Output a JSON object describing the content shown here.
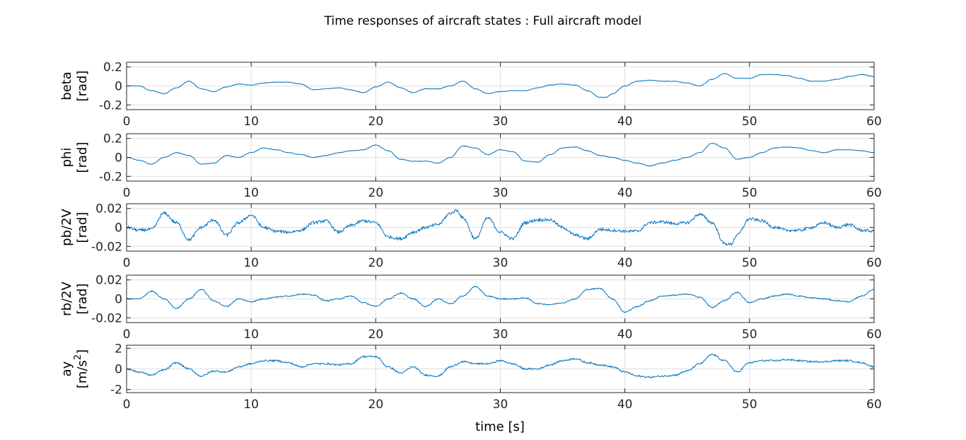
{
  "figure": {
    "title": "Time responses of aircraft states : Full aircraft model",
    "xlabel": "time [s]"
  },
  "chart_data": [
    {
      "type": "line",
      "ylabel_lines": [
        "beta",
        "[rad]"
      ],
      "xlim": [
        0,
        60
      ],
      "ylim": [
        -0.25,
        0.25
      ],
      "yticks": [
        -0.2,
        0,
        0.2
      ],
      "ytick_labels": [
        "-0.2",
        "0",
        "0.2"
      ],
      "xticks": [
        0,
        10,
        20,
        30,
        40,
        50,
        60
      ],
      "grid": true,
      "line_color": "#0072BD",
      "noise": 0.003,
      "x": [
        0,
        1,
        2,
        3,
        4,
        5,
        6,
        7,
        8,
        9,
        10,
        11,
        12,
        13,
        14,
        15,
        16,
        17,
        18,
        19,
        20,
        21,
        22,
        23,
        24,
        25,
        26,
        27,
        28,
        29,
        30,
        31,
        32,
        33,
        34,
        35,
        36,
        37,
        38,
        38.5,
        39,
        40,
        41,
        42,
        43,
        44,
        45,
        46,
        47,
        48,
        49,
        50,
        51,
        52,
        53,
        54,
        55,
        56,
        57,
        58,
        59,
        60
      ],
      "values": [
        0.0,
        0.0,
        -0.05,
        -0.08,
        -0.02,
        0.05,
        -0.03,
        -0.06,
        -0.01,
        0.02,
        0.01,
        0.03,
        0.04,
        0.04,
        0.02,
        -0.04,
        -0.03,
        -0.02,
        -0.04,
        -0.07,
        -0.01,
        0.04,
        -0.02,
        -0.07,
        -0.03,
        -0.03,
        0.0,
        0.05,
        -0.03,
        -0.08,
        -0.06,
        -0.05,
        -0.05,
        -0.02,
        0.01,
        0.02,
        0.01,
        -0.05,
        -0.12,
        -0.12,
        -0.08,
        0.0,
        0.05,
        0.06,
        0.05,
        0.05,
        0.03,
        0.0,
        0.07,
        0.13,
        0.08,
        0.08,
        0.12,
        0.12,
        0.11,
        0.08,
        0.05,
        0.05,
        0.07,
        0.1,
        0.12,
        0.1
      ]
    },
    {
      "type": "line",
      "ylabel_lines": [
        "phi",
        "[rad]"
      ],
      "xlim": [
        0,
        60
      ],
      "ylim": [
        -0.25,
        0.25
      ],
      "yticks": [
        -0.2,
        0,
        0.2
      ],
      "ytick_labels": [
        "-0.2",
        "0",
        "0.2"
      ],
      "xticks": [
        0,
        10,
        20,
        30,
        40,
        50,
        60
      ],
      "grid": true,
      "line_color": "#0072BD",
      "noise": 0.003,
      "x": [
        0,
        1,
        2,
        3,
        4,
        5,
        6,
        7,
        8,
        9,
        10,
        11,
        12,
        13,
        14,
        15,
        16,
        17,
        18,
        19,
        20,
        21,
        22,
        23,
        24,
        25,
        26,
        27,
        28,
        29,
        30,
        31,
        32,
        33,
        34,
        35,
        36,
        37,
        38,
        39,
        40,
        41,
        42,
        43,
        44,
        45,
        46,
        47,
        48,
        49,
        50,
        51,
        52,
        53,
        54,
        55,
        56,
        57,
        58,
        59,
        60
      ],
      "values": [
        0.0,
        -0.03,
        -0.07,
        0.0,
        0.05,
        0.02,
        -0.07,
        -0.06,
        0.02,
        0.0,
        0.05,
        0.1,
        0.08,
        0.05,
        0.03,
        0.0,
        0.02,
        0.05,
        0.07,
        0.08,
        0.13,
        0.07,
        -0.02,
        -0.04,
        -0.04,
        -0.06,
        0.0,
        0.12,
        0.1,
        0.03,
        0.08,
        0.06,
        -0.04,
        -0.05,
        0.03,
        0.1,
        0.11,
        0.07,
        0.02,
        0.0,
        -0.03,
        -0.06,
        -0.09,
        -0.06,
        -0.03,
        0.0,
        0.05,
        0.15,
        0.1,
        -0.02,
        0.0,
        0.05,
        0.1,
        0.11,
        0.1,
        0.07,
        0.05,
        0.08,
        0.08,
        0.07,
        0.05
      ]
    },
    {
      "type": "line",
      "ylabel_lines": [
        "pb/2V",
        "[rad]"
      ],
      "xlim": [
        0,
        60
      ],
      "ylim": [
        -0.025,
        0.025
      ],
      "yticks": [
        -0.02,
        0,
        0.02
      ],
      "ytick_labels": [
        "-0.02",
        "0",
        "0.02"
      ],
      "xticks": [
        0,
        10,
        20,
        30,
        40,
        50,
        60
      ],
      "grid": true,
      "line_color": "#0072BD",
      "noise": 0.0015,
      "x": [
        0,
        1,
        2,
        3,
        4,
        5,
        6,
        7,
        8,
        9,
        10,
        11,
        12,
        13,
        14,
        15,
        16,
        17,
        18,
        19,
        20,
        21,
        22,
        23,
        24,
        25,
        26,
        26.5,
        27,
        28,
        29,
        30,
        31,
        32,
        33,
        34,
        35,
        36,
        37,
        38,
        39,
        40,
        41,
        42,
        43,
        44,
        45,
        46,
        47,
        48,
        48.5,
        49,
        50,
        51,
        52,
        53,
        54,
        55,
        56,
        57,
        58,
        59,
        60
      ],
      "values": [
        0.0,
        -0.003,
        -0.002,
        0.015,
        0.005,
        -0.013,
        0.0,
        0.008,
        -0.008,
        0.005,
        0.013,
        0.0,
        -0.004,
        -0.005,
        -0.003,
        0.005,
        0.007,
        -0.005,
        0.002,
        0.007,
        0.005,
        -0.01,
        -0.012,
        -0.005,
        0.0,
        0.003,
        0.015,
        0.018,
        0.01,
        -0.012,
        0.01,
        -0.005,
        -0.012,
        0.005,
        0.008,
        0.008,
        0.0,
        -0.008,
        -0.012,
        -0.002,
        -0.003,
        -0.004,
        -0.004,
        0.005,
        0.006,
        0.004,
        0.005,
        0.014,
        0.005,
        -0.017,
        -0.018,
        -0.008,
        0.009,
        0.007,
        0.0,
        -0.003,
        -0.003,
        0.0,
        0.005,
        0.0,
        0.003,
        -0.003,
        -0.004
      ]
    },
    {
      "type": "line",
      "ylabel_lines": [
        "rb/2V",
        "[rad]"
      ],
      "xlim": [
        0,
        60
      ],
      "ylim": [
        -0.025,
        0.025
      ],
      "yticks": [
        -0.02,
        0,
        0.02
      ],
      "ytick_labels": [
        "-0.02",
        "0",
        "0.02"
      ],
      "xticks": [
        0,
        10,
        20,
        30,
        40,
        50,
        60
      ],
      "grid": true,
      "line_color": "#0072BD",
      "noise": 0.0006,
      "x": [
        0,
        1,
        2,
        3,
        4,
        5,
        6,
        7,
        8,
        9,
        10,
        11,
        12,
        13,
        14,
        15,
        16,
        17,
        18,
        19,
        20,
        21,
        22,
        23,
        24,
        25,
        26,
        27,
        28,
        29,
        30,
        31,
        32,
        33,
        34,
        35,
        36,
        37,
        38,
        39,
        40,
        41,
        42,
        43,
        44,
        45,
        46,
        47,
        48,
        49,
        50,
        51,
        52,
        53,
        54,
        55,
        56,
        57,
        58,
        59,
        60
      ],
      "values": [
        0.0,
        0.0,
        0.008,
        0.0,
        -0.01,
        0.0,
        0.01,
        -0.002,
        -0.008,
        0.0,
        -0.003,
        0.0,
        0.002,
        0.003,
        0.005,
        0.004,
        -0.002,
        0.0,
        0.003,
        -0.004,
        -0.008,
        0.0,
        0.006,
        0.0,
        -0.008,
        0.0,
        -0.005,
        0.003,
        0.013,
        0.003,
        0.0,
        0.0,
        0.001,
        -0.005,
        -0.006,
        -0.004,
        0.0,
        0.01,
        0.011,
        0.0,
        -0.014,
        -0.008,
        -0.002,
        0.003,
        0.004,
        0.005,
        0.002,
        -0.009,
        -0.002,
        0.007,
        -0.004,
        0.0,
        0.003,
        0.005,
        0.003,
        0.001,
        0.0,
        -0.002,
        -0.003,
        0.003,
        0.01
      ]
    },
    {
      "type": "line",
      "ylabel_lines": [
        "ay",
        "[m/s2]"
      ],
      "xlim": [
        0,
        60
      ],
      "ylim": [
        -2.3,
        2.3
      ],
      "yticks": [
        -2,
        0,
        2
      ],
      "ytick_labels": [
        "-2",
        "0",
        "2"
      ],
      "xticks": [
        0,
        10,
        20,
        30,
        40,
        50,
        60
      ],
      "xtick_labels": [
        "0",
        "10",
        "20",
        "30",
        "40",
        "50",
        "60"
      ],
      "grid": true,
      "line_color": "#0072BD",
      "noise": 0.08,
      "x": [
        0,
        1,
        2,
        3,
        4,
        5,
        6,
        7,
        8,
        9,
        10,
        11,
        12,
        13,
        14,
        15,
        16,
        17,
        18,
        19,
        20,
        21,
        22,
        23,
        24,
        25,
        26,
        27,
        28,
        29,
        30,
        31,
        32,
        33,
        34,
        35,
        36,
        37,
        38,
        39,
        40,
        41,
        42,
        43,
        44,
        45,
        46,
        47,
        48,
        49,
        50,
        51,
        52,
        53,
        54,
        55,
        56,
        57,
        58,
        59,
        60
      ],
      "values": [
        0.0,
        -0.3,
        -0.6,
        -0.1,
        0.6,
        0.0,
        -0.7,
        -0.2,
        -0.3,
        0.2,
        0.5,
        0.8,
        0.8,
        0.6,
        0.2,
        0.5,
        0.5,
        0.4,
        0.5,
        1.2,
        1.2,
        0.2,
        -0.4,
        0.2,
        -0.6,
        -0.7,
        0.2,
        0.7,
        0.5,
        0.5,
        0.8,
        0.5,
        0.0,
        0.0,
        0.4,
        0.8,
        1.0,
        0.6,
        0.4,
        0.2,
        -0.3,
        -0.7,
        -0.8,
        -0.7,
        -0.6,
        -0.2,
        0.5,
        1.4,
        0.8,
        -0.3,
        0.6,
        0.8,
        0.8,
        0.9,
        0.8,
        0.7,
        0.7,
        0.8,
        0.8,
        0.6,
        0.2
      ]
    }
  ]
}
